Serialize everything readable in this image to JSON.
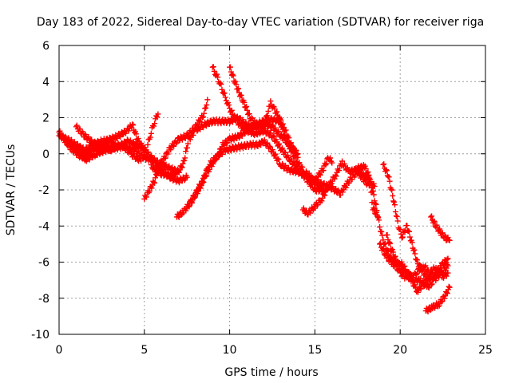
{
  "chart_data": {
    "type": "scatter",
    "title": "Day 183 of 2022, Sidereal Day-to-day VTEC variation (SDTVAR) for receiver riga",
    "xlabel": "GPS time / hours",
    "ylabel": "SDTVAR / TECUs",
    "xlim": [
      0,
      25
    ],
    "ylim": [
      -10,
      6
    ],
    "xticks": [
      0,
      5,
      10,
      15,
      20,
      25
    ],
    "yticks": [
      -10,
      -8,
      -6,
      -4,
      -2,
      0,
      2,
      4,
      6
    ],
    "x_tick_labels": [
      "0",
      "5",
      "10",
      "15",
      "20",
      "25"
    ],
    "y_tick_labels": [
      "-10",
      "-8",
      "-6",
      "-4",
      "-2",
      "0",
      "2",
      "4",
      "6"
    ],
    "grid": true,
    "legend": "none",
    "marker": "+",
    "color": "#ff0000",
    "series": [
      {
        "points": [
          [
            0,
            1.0
          ],
          [
            0.5,
            0.8
          ],
          [
            1,
            0.5
          ],
          [
            1.5,
            0.2
          ],
          [
            2,
            0.5
          ],
          [
            2.5,
            0.7
          ],
          [
            3,
            0.8
          ],
          [
            3.5,
            1.0
          ],
          [
            4,
            1.3
          ],
          [
            4.3,
            1.6
          ],
          [
            4.6,
            0.8
          ],
          [
            5,
            0.2
          ],
          [
            5.5,
            -0.3
          ],
          [
            6,
            -0.6
          ],
          [
            6.5,
            -0.8
          ],
          [
            7,
            -1.0
          ],
          [
            7.3,
            -0.5
          ],
          [
            7.6,
            0.8
          ],
          [
            8,
            1.3
          ],
          [
            8.5,
            1.6
          ],
          [
            9,
            1.8
          ],
          [
            9.5,
            1.8
          ],
          [
            10,
            1.8
          ],
          [
            10.5,
            2.0
          ],
          [
            11,
            1.6
          ],
          [
            11.5,
            1.4
          ],
          [
            12,
            1.7
          ],
          [
            12.5,
            1.5
          ],
          [
            13,
            1.0
          ],
          [
            13.5,
            0.5
          ],
          [
            14,
            0.0
          ]
        ]
      },
      {
        "points": [
          [
            0,
            1.2
          ],
          [
            0.5,
            0.6
          ],
          [
            1,
            0.2
          ],
          [
            1.5,
            -0.1
          ],
          [
            2,
            0.2
          ],
          [
            2.5,
            0.4
          ],
          [
            3,
            0.6
          ],
          [
            3.5,
            0.4
          ],
          [
            4,
            0.7
          ],
          [
            4.5,
            0.5
          ],
          [
            5,
            0.3
          ],
          [
            5.5,
            -0.4
          ],
          [
            6,
            -0.9
          ],
          [
            6.5,
            -1.3
          ],
          [
            7,
            -1.5
          ],
          [
            7.5,
            -1.3
          ]
        ]
      },
      {
        "points": [
          [
            1,
            1.5
          ],
          [
            1.5,
            1.0
          ],
          [
            2,
            0.6
          ],
          [
            2.5,
            0.5
          ],
          [
            3,
            0.2
          ],
          [
            3.5,
            0.5
          ],
          [
            4,
            0.3
          ],
          [
            4.5,
            0.2
          ],
          [
            5,
            -0.2
          ],
          [
            5.3,
            -0.3
          ],
          [
            5.5,
            -0.8
          ],
          [
            6,
            -1.1
          ],
          [
            6.5,
            -1.2
          ],
          [
            7,
            -1.0
          ]
        ]
      },
      {
        "points": [
          [
            0.2,
            0.9
          ],
          [
            0.7,
            0.3
          ],
          [
            1.2,
            -0.1
          ],
          [
            1.6,
            -0.3
          ],
          [
            2.2,
            0.0
          ],
          [
            2.7,
            0.2
          ],
          [
            3.2,
            0.3
          ],
          [
            3.8,
            0.4
          ],
          [
            4.2,
            0.0
          ],
          [
            4.8,
            -0.4
          ]
        ]
      },
      {
        "points": [
          [
            5,
            -2.5
          ],
          [
            5.3,
            -2.0
          ],
          [
            5.6,
            -1.5
          ],
          [
            5.9,
            -0.6
          ],
          [
            6.2,
            -0.2
          ],
          [
            6.5,
            0.3
          ],
          [
            7,
            0.8
          ],
          [
            7.5,
            1.0
          ],
          [
            8,
            1.5
          ],
          [
            8.5,
            2.2
          ],
          [
            8.7,
            3.0
          ]
        ]
      },
      {
        "points": [
          [
            5.2,
            0.5
          ],
          [
            5.4,
            1.2
          ],
          [
            5.6,
            1.8
          ],
          [
            5.8,
            2.2
          ]
        ]
      },
      {
        "points": [
          [
            6.9,
            -3.5
          ],
          [
            7.3,
            -3.2
          ],
          [
            7.8,
            -2.6
          ],
          [
            8.3,
            -1.8
          ],
          [
            8.6,
            -1.2
          ],
          [
            9,
            -0.5
          ],
          [
            9.3,
            -0.1
          ],
          [
            9.6,
            0.5
          ],
          [
            10,
            0.8
          ],
          [
            10.3,
            0.9
          ],
          [
            10.6,
            1.0
          ],
          [
            11,
            1.3
          ],
          [
            11.5,
            1.6
          ],
          [
            12,
            1.8
          ],
          [
            12.5,
            1.9
          ],
          [
            13,
            1.8
          ],
          [
            13.3,
            1.2
          ],
          [
            13.6,
            0.5
          ],
          [
            14,
            -0.2
          ]
        ]
      },
      {
        "points": [
          [
            7.5,
            -3.0
          ],
          [
            8,
            -2.2
          ],
          [
            8.4,
            -1.5
          ],
          [
            8.8,
            -0.6
          ],
          [
            9.2,
            -0.2
          ],
          [
            9.7,
            0.2
          ],
          [
            10.2,
            0.3
          ],
          [
            10.7,
            0.4
          ],
          [
            11.2,
            0.5
          ],
          [
            11.7,
            0.5
          ],
          [
            12,
            0.7
          ],
          [
            12.3,
            0.4
          ],
          [
            12.6,
            0.0
          ],
          [
            13,
            -0.6
          ],
          [
            13.5,
            -0.9
          ],
          [
            14,
            -1.0
          ],
          [
            14.5,
            -1.2
          ],
          [
            15,
            -1.5
          ],
          [
            15.5,
            -1.7
          ],
          [
            16,
            -1.9
          ],
          [
            16.5,
            -2.2
          ],
          [
            17,
            -1.5
          ],
          [
            17.5,
            -1.0
          ],
          [
            18,
            -1.6
          ],
          [
            18.5,
            -1.8
          ]
        ]
      },
      {
        "points": [
          [
            9,
            4.8
          ],
          [
            9.2,
            4.4
          ],
          [
            9.4,
            4.0
          ],
          [
            9.6,
            3.5
          ],
          [
            9.8,
            3.0
          ],
          [
            10,
            2.5
          ],
          [
            10.3,
            2.0
          ],
          [
            10.6,
            1.6
          ],
          [
            11,
            1.3
          ],
          [
            11.5,
            1.1
          ],
          [
            12,
            1.3
          ],
          [
            12.5,
            1.0
          ],
          [
            13,
            0.3
          ],
          [
            13.5,
            -0.3
          ],
          [
            14,
            -0.8
          ],
          [
            14.5,
            -1.4
          ],
          [
            15,
            -2.0
          ],
          [
            15.5,
            -2.0
          ]
        ]
      },
      {
        "points": [
          [
            10,
            4.8
          ],
          [
            10.3,
            4.0
          ],
          [
            10.6,
            3.3
          ],
          [
            10.9,
            2.7
          ],
          [
            11.2,
            2.0
          ],
          [
            11.6,
            1.6
          ],
          [
            12,
            1.5
          ],
          [
            12.4,
            2.8
          ],
          [
            12.6,
            2.5
          ],
          [
            12.9,
            2.0
          ],
          [
            13.2,
            1.0
          ],
          [
            13.6,
            0.2
          ],
          [
            14,
            -0.5
          ],
          [
            14.4,
            -1.0
          ],
          [
            14.8,
            -1.3
          ],
          [
            15.2,
            -1.8
          ],
          [
            15.6,
            -2.1
          ]
        ]
      },
      {
        "points": [
          [
            14.3,
            -3.1
          ],
          [
            14.6,
            -3.3
          ],
          [
            15,
            -2.9
          ],
          [
            15.4,
            -2.5
          ],
          [
            15.8,
            -1.8
          ],
          [
            16.2,
            -1.2
          ],
          [
            16.6,
            -0.5
          ],
          [
            17,
            -1.0
          ],
          [
            17.4,
            -0.9
          ],
          [
            17.8,
            -1.2
          ],
          [
            18.2,
            -1.3
          ],
          [
            18.4,
            -3.0
          ],
          [
            18.7,
            -3.5
          ]
        ]
      },
      {
        "points": [
          [
            14.5,
            -1.2
          ],
          [
            15,
            -1.5
          ],
          [
            15.5,
            -0.8
          ],
          [
            15.8,
            -0.2
          ],
          [
            16,
            -0.5
          ]
        ]
      },
      {
        "points": [
          [
            17.5,
            -0.8
          ],
          [
            17.9,
            -0.7
          ],
          [
            18.2,
            -1.3
          ],
          [
            18.5,
            -2.5
          ],
          [
            18.8,
            -4.0
          ],
          [
            19,
            -4.8
          ],
          [
            19.3,
            -5.5
          ],
          [
            19.6,
            -6.0
          ],
          [
            20,
            -6.6
          ],
          [
            20.4,
            -6.9
          ],
          [
            20.8,
            -6.8
          ],
          [
            21,
            -6.5
          ],
          [
            21.4,
            -6.2
          ],
          [
            21.7,
            -6.6
          ],
          [
            22.1,
            -6.3
          ],
          [
            22.5,
            -6.8
          ],
          [
            22.8,
            -6.6
          ]
        ]
      },
      {
        "points": [
          [
            18.8,
            -5.0
          ],
          [
            19.2,
            -5.7
          ],
          [
            19.6,
            -6.1
          ],
          [
            20,
            -6.0
          ],
          [
            20.4,
            -6.5
          ],
          [
            20.8,
            -7.0
          ],
          [
            21.2,
            -7.0
          ],
          [
            21.6,
            -7.4
          ],
          [
            22,
            -7.0
          ],
          [
            22.4,
            -6.6
          ],
          [
            22.8,
            -6.2
          ]
        ]
      },
      {
        "points": [
          [
            19,
            -0.6
          ],
          [
            19.3,
            -1.2
          ],
          [
            19.6,
            -2.5
          ],
          [
            19.9,
            -4.0
          ],
          [
            20.1,
            -4.6
          ],
          [
            20.4,
            -4.0
          ],
          [
            20.7,
            -5.0
          ],
          [
            21,
            -6.0
          ],
          [
            21.3,
            -6.5
          ],
          [
            21.6,
            -6.9
          ],
          [
            22,
            -6.8
          ],
          [
            22.4,
            -6.2
          ],
          [
            22.8,
            -5.8
          ]
        ]
      },
      {
        "points": [
          [
            19.2,
            -4.5
          ],
          [
            19.5,
            -5.3
          ],
          [
            19.8,
            -6.0
          ],
          [
            20.2,
            -6.4
          ],
          [
            20.6,
            -6.9
          ],
          [
            21,
            -7.6
          ],
          [
            21.4,
            -7.2
          ],
          [
            21.7,
            -6.8
          ]
        ]
      },
      {
        "points": [
          [
            21.5,
            -8.7
          ],
          [
            21.9,
            -8.5
          ],
          [
            22.3,
            -8.3
          ],
          [
            22.6,
            -7.9
          ],
          [
            22.9,
            -7.4
          ]
        ]
      },
      {
        "points": [
          [
            21.8,
            -3.5
          ],
          [
            22.1,
            -4.0
          ],
          [
            22.4,
            -4.4
          ],
          [
            22.7,
            -4.7
          ],
          [
            22.9,
            -4.8
          ]
        ]
      }
    ]
  }
}
